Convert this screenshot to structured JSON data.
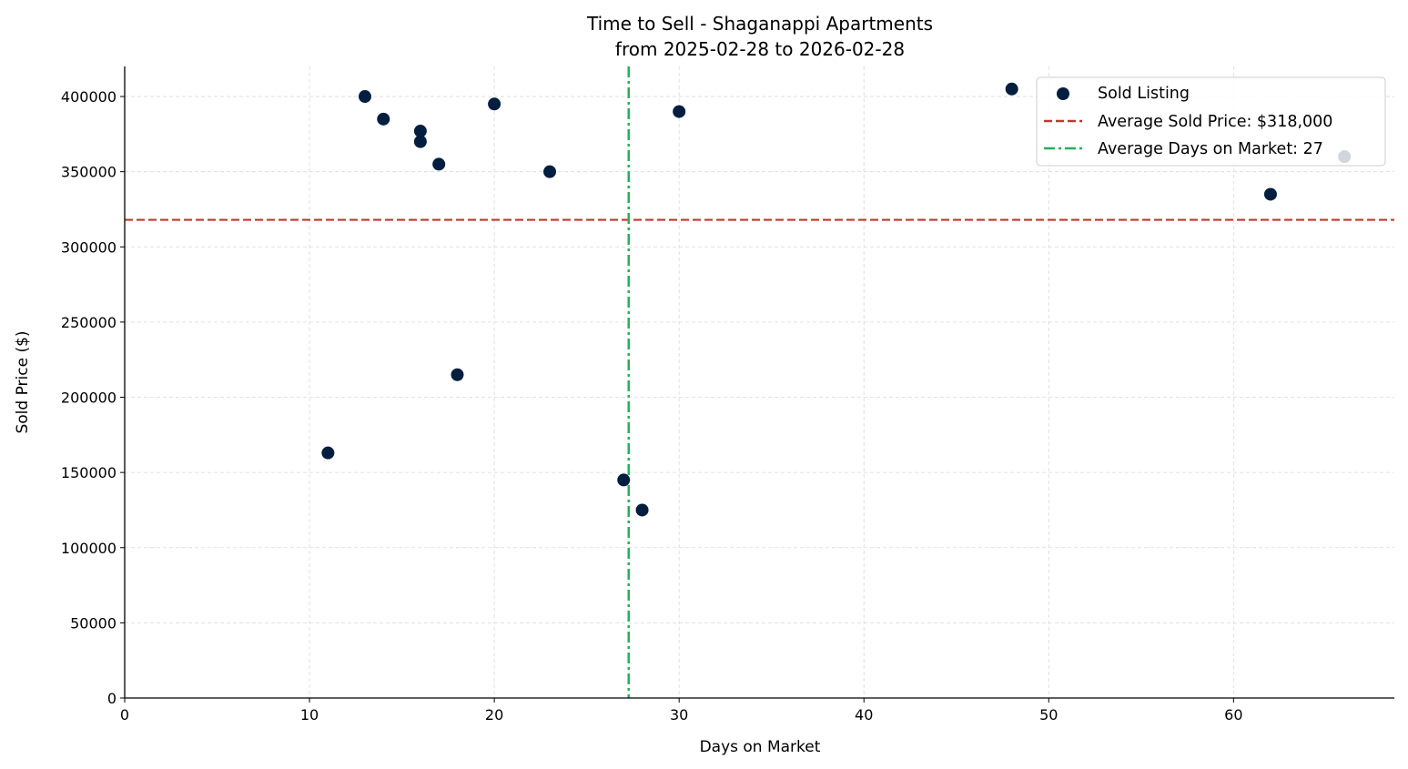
{
  "chart_data": {
    "type": "scatter",
    "title": "Time to Sell - Shaganappi Apartments",
    "subtitle": "from 2025-02-28 to 2026-02-28",
    "xlabel": "Days on Market",
    "ylabel": "Sold Price ($)",
    "xlim": [
      0,
      68.7
    ],
    "ylim": [
      0,
      420000
    ],
    "xticks": [
      0,
      10,
      20,
      30,
      40,
      50,
      60
    ],
    "yticks": [
      0,
      50000,
      100000,
      150000,
      200000,
      250000,
      300000,
      350000,
      400000
    ],
    "grid": true,
    "legend_position": "top-right",
    "series": [
      {
        "name": "Sold Listing",
        "color": "#041e3f",
        "points": [
          {
            "x": 11,
            "y": 163000
          },
          {
            "x": 13,
            "y": 400000
          },
          {
            "x": 14,
            "y": 385000
          },
          {
            "x": 16,
            "y": 377000
          },
          {
            "x": 16,
            "y": 370000
          },
          {
            "x": 17,
            "y": 355000
          },
          {
            "x": 18,
            "y": 215000
          },
          {
            "x": 20,
            "y": 395000
          },
          {
            "x": 23,
            "y": 350000
          },
          {
            "x": 27,
            "y": 145000
          },
          {
            "x": 28,
            "y": 125000
          },
          {
            "x": 30,
            "y": 390000
          },
          {
            "x": 48,
            "y": 405000
          },
          {
            "x": 62,
            "y": 335000
          },
          {
            "x": 66,
            "y": 360000
          }
        ]
      }
    ],
    "reference_lines": [
      {
        "name": "Average Sold Price: $318,000",
        "orientation": "horizontal",
        "value": 318000,
        "style": "dashed",
        "color": "#c0392b"
      },
      {
        "name": "Average Days on Market: 27",
        "orientation": "vertical",
        "value": 27.27,
        "style": "dashdot",
        "color": "#27ae60"
      }
    ]
  }
}
